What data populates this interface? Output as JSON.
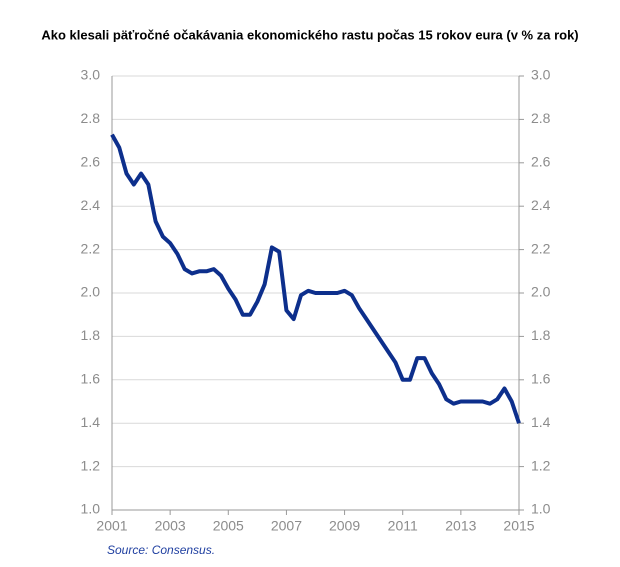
{
  "chart_data": {
    "type": "line",
    "title": "Ako klesali päťročné očakávania ekonomického rastu počas 15 rokov eura (v % za rok)",
    "source": "Source: Consensus.",
    "x": [
      2001,
      2001.25,
      2001.5,
      2001.75,
      2002,
      2002.25,
      2002.5,
      2002.75,
      2003,
      2003.25,
      2003.5,
      2003.75,
      2004,
      2004.25,
      2004.5,
      2004.75,
      2005,
      2005.25,
      2005.5,
      2005.75,
      2006,
      2006.25,
      2006.5,
      2006.75,
      2007,
      2007.25,
      2007.5,
      2007.75,
      2008,
      2008.25,
      2008.5,
      2008.75,
      2009,
      2009.25,
      2009.5,
      2009.75,
      2010,
      2010.25,
      2010.5,
      2010.75,
      2011,
      2011.25,
      2011.5,
      2011.75,
      2012,
      2012.25,
      2012.5,
      2012.75,
      2013,
      2013.25,
      2013.5,
      2013.75,
      2014,
      2014.25,
      2014.5,
      2014.75,
      2015
    ],
    "series": [
      {
        "color": "#0d2f8c",
        "values": [
          2.73,
          2.67,
          2.55,
          2.5,
          2.55,
          2.5,
          2.33,
          2.26,
          2.23,
          2.18,
          2.11,
          2.09,
          2.1,
          2.1,
          2.11,
          2.08,
          2.02,
          1.97,
          1.9,
          1.9,
          1.96,
          2.04,
          2.21,
          2.19,
          1.92,
          1.88,
          1.99,
          2.01,
          2.0,
          2.0,
          2.0,
          2.0,
          2.01,
          1.99,
          1.93,
          1.88,
          1.83,
          1.78,
          1.73,
          1.68,
          1.6,
          1.6,
          1.7,
          1.7,
          1.63,
          1.58,
          1.51,
          1.49,
          1.5,
          1.5,
          1.5,
          1.5,
          1.49,
          1.51,
          1.56,
          1.5,
          1.4
        ]
      }
    ],
    "xlim": [
      2001,
      2015
    ],
    "xticks": [
      2001,
      2003,
      2005,
      2007,
      2009,
      2011,
      2013,
      2015
    ],
    "ylim": [
      1,
      3
    ],
    "yticks": [
      {
        "value": 1,
        "label": "1.0"
      },
      1.2,
      1.4,
      1.6,
      1.8,
      {
        "value": 2,
        "label": "2.0"
      },
      2.2,
      2.4,
      2.6,
      2.8,
      {
        "value": 3,
        "label": "3.0"
      }
    ],
    "y2lim": [
      1,
      3
    ],
    "y2ticks": [
      {
        "value": 1,
        "label": "1.0"
      },
      1.2,
      1.4,
      1.6,
      1.8,
      {
        "value": 2,
        "label": "2.0"
      },
      2.2,
      2.4,
      2.6,
      2.8,
      {
        "value": 3,
        "label": "3.0"
      }
    ],
    "grid": true
  }
}
